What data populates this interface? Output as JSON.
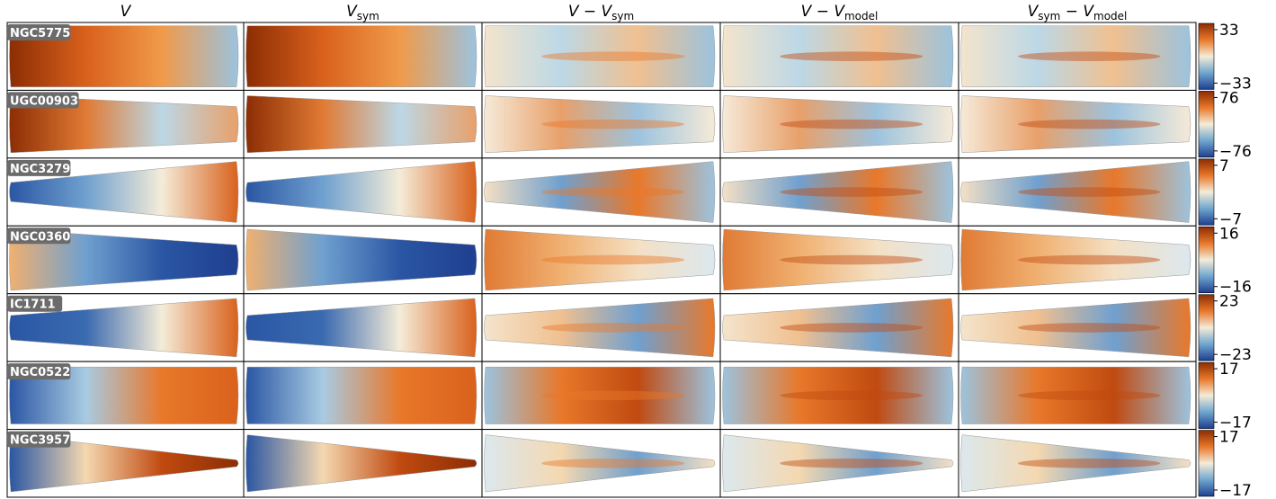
{
  "columns": [
    {
      "parts": [
        {
          "text": "V"
        }
      ]
    },
    {
      "parts": [
        {
          "text": "V"
        },
        {
          "text": "sym",
          "sub": true
        }
      ]
    },
    {
      "parts": [
        {
          "text": "V − V"
        },
        {
          "text": "sym",
          "sub": true
        }
      ]
    },
    {
      "parts": [
        {
          "text": "V − V"
        },
        {
          "text": "model",
          "sub": true
        }
      ]
    },
    {
      "parts": [
        {
          "text": "V"
        },
        {
          "text": "sym",
          "sub": true
        },
        {
          "text": " − V"
        },
        {
          "text": "model",
          "sub": true
        }
      ]
    }
  ],
  "rows": [
    {
      "name": "NGC5775",
      "colorbar_ticks": [
        33,
        {
          "value": -33,
          "label": "−33"
        }
      ]
    },
    {
      "name": "UGC00903",
      "colorbar_ticks": [
        76,
        {
          "value": -76,
          "label": "−76"
        }
      ]
    },
    {
      "name": "NGC3279",
      "colorbar_ticks": [
        7,
        {
          "value": -7,
          "label": "−7"
        }
      ]
    },
    {
      "name": "NGC0360",
      "colorbar_ticks": [
        16,
        {
          "value": -16,
          "label": "−16"
        }
      ]
    },
    {
      "name": "IC1711",
      "colorbar_ticks": [
        23,
        {
          "value": -23,
          "label": "−23"
        }
      ]
    },
    {
      "name": "NGC0522",
      "colorbar_ticks": [
        17,
        {
          "value": -17,
          "label": "−17"
        }
      ]
    },
    {
      "name": "NGC3957",
      "colorbar_ticks": [
        17,
        {
          "value": -17,
          "label": "−17"
        }
      ]
    }
  ]
}
